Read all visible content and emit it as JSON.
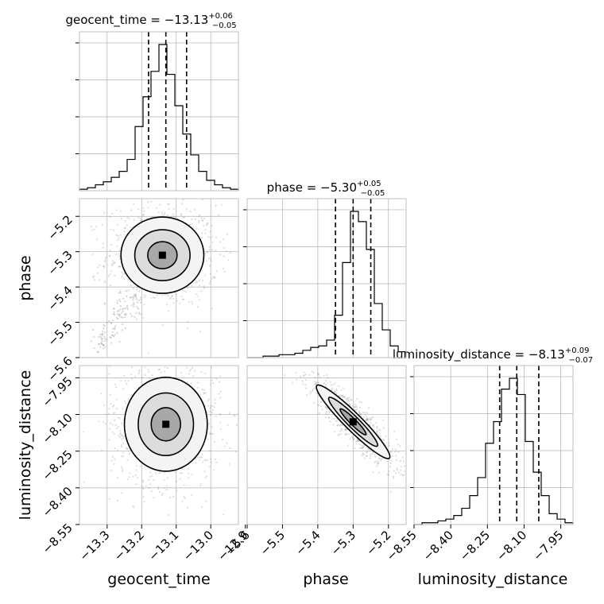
{
  "chart_data": {
    "type": "corner",
    "grid": true,
    "parameters": [
      {
        "name": "geocent_time",
        "axis_label": "geocent_time",
        "title_prefix": "geocent_time = ",
        "median": "−13.13",
        "upper": "+0.06",
        "lower": "−0.05",
        "range": [
          -13.38,
          -12.92
        ],
        "ticks": [
          -13.3,
          -13.2,
          -13.1,
          -13.0,
          -12.9
        ],
        "tick_labels": [
          "−13.3",
          "−13.2",
          "−13.1",
          "−13.0",
          "−12.9"
        ],
        "quantiles": [
          -13.18,
          -13.13,
          -13.07
        ],
        "hist_edges": [
          -13.38,
          -12.92
        ],
        "hist_counts": [
          1,
          2,
          4,
          6,
          9,
          13,
          21,
          43,
          63,
          80,
          98,
          78,
          57,
          38,
          24,
          13,
          7,
          4,
          2,
          1
        ]
      },
      {
        "name": "phase",
        "axis_label": "phase",
        "title_prefix": "phase = ",
        "median": "−5.30",
        "upper": "+0.05",
        "lower": "−0.05",
        "range": [
          -5.6,
          -5.15
        ],
        "ticks": [
          -5.6,
          -5.5,
          -5.4,
          -5.3,
          -5.2
        ],
        "tick_labels": [
          "−5.6",
          "−5.5",
          "−5.4",
          "−5.3",
          "−5.2"
        ],
        "quantiles": [
          -5.35,
          -5.3,
          -5.25
        ],
        "hist_edges": [
          -5.6,
          -5.15
        ],
        "hist_counts": [
          0,
          0,
          1,
          1,
          2,
          2,
          3,
          5,
          7,
          8,
          12,
          29,
          65,
          100,
          93,
          74,
          37,
          19,
          8,
          4
        ]
      },
      {
        "name": "luminosity_distance",
        "axis_label": "luminosity_distance",
        "title_prefix": "luminosity_distance = ",
        "median": "−8.13",
        "upper": "+0.09",
        "lower": "−0.07",
        "range": [
          -8.55,
          -7.9
        ],
        "ticks": [
          -8.55,
          -8.4,
          -8.25,
          -8.1,
          -7.95
        ],
        "tick_labels": [
          "−8.55",
          "−8.40",
          "−8.25",
          "−8.10",
          "−7.95"
        ],
        "quantiles": [
          -8.2,
          -8.13,
          -8.04
        ],
        "hist_edges": [
          -8.55,
          -7.9
        ],
        "hist_counts": [
          0,
          1,
          1,
          2,
          3,
          5,
          9,
          16,
          26,
          45,
          57,
          75,
          81,
          72,
          46,
          29,
          16,
          6,
          3,
          1
        ]
      }
    ],
    "pairs": [
      {
        "x": "geocent_time",
        "y": "phase",
        "center": [
          -13.14,
          -5.31
        ],
        "spread": [
          0.05,
          0.045
        ],
        "tail_toward": [
          -13.33,
          -5.58
        ]
      },
      {
        "x": "geocent_time",
        "y": "luminosity_distance",
        "center": [
          -13.13,
          -8.14
        ],
        "spread": [
          0.05,
          0.08
        ]
      },
      {
        "x": "phase",
        "y": "luminosity_distance",
        "center": [
          -5.3,
          -8.13
        ],
        "spread": [
          0.04,
          0.06
        ],
        "correlation": -0.9
      }
    ],
    "colors": {
      "hist": "#000000",
      "points": "#888888",
      "grid": "#b0b0b0",
      "frame": "#bfbfbf"
    }
  }
}
